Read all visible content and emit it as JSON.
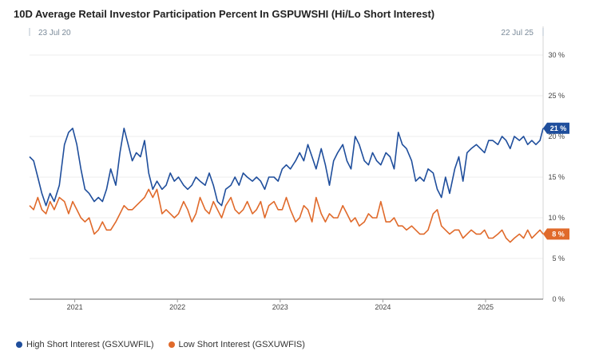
{
  "chart_data": {
    "type": "line",
    "title": "10D Average Retail Investor Participation Percent In GSPUWSHI (Hi/Lo Short Interest)",
    "range_start_label": "23 Jul 20",
    "range_end_label": "22 Jul 25",
    "x_start": 2020.56,
    "x_end": 2025.56,
    "xticks": [
      2021,
      2022,
      2023,
      2024,
      2025
    ],
    "xtick_labels": [
      "2021",
      "2022",
      "2023",
      "2024",
      "2025"
    ],
    "ylim": [
      0,
      30
    ],
    "yticks": [
      0,
      5,
      10,
      15,
      20,
      25,
      30
    ],
    "ytick_labels": [
      "0 %",
      "5 %",
      "10 %",
      "15 %",
      "20 %",
      "25 %",
      "30 %"
    ],
    "series": [
      {
        "name": "High Short Interest (GSXUWFIL)",
        "color": "#1f4e9c",
        "last_label": "21 %",
        "x": [
          2020.56,
          2020.6,
          2020.64,
          2020.68,
          2020.72,
          2020.76,
          2020.8,
          2020.85,
          2020.9,
          2020.94,
          2020.98,
          2021.02,
          2021.06,
          2021.1,
          2021.14,
          2021.19,
          2021.23,
          2021.27,
          2021.31,
          2021.35,
          2021.4,
          2021.44,
          2021.48,
          2021.52,
          2021.56,
          2021.6,
          2021.64,
          2021.68,
          2021.72,
          2021.76,
          2021.8,
          2021.85,
          2021.89,
          2021.93,
          2021.97,
          2022.01,
          2022.06,
          2022.1,
          2022.14,
          2022.18,
          2022.22,
          2022.27,
          2022.31,
          2022.35,
          2022.39,
          2022.43,
          2022.47,
          2022.52,
          2022.56,
          2022.6,
          2022.64,
          2022.68,
          2022.73,
          2022.77,
          2022.81,
          2022.85,
          2022.89,
          2022.94,
          2022.98,
          2023.02,
          2023.06,
          2023.1,
          2023.15,
          2023.19,
          2023.23,
          2023.27,
          2023.31,
          2023.35,
          2023.4,
          2023.44,
          2023.48,
          2023.52,
          2023.56,
          2023.61,
          2023.65,
          2023.69,
          2023.73,
          2023.77,
          2023.82,
          2023.86,
          2023.9,
          2023.94,
          2023.98,
          2024.03,
          2024.07,
          2024.11,
          2024.15,
          2024.19,
          2024.23,
          2024.28,
          2024.32,
          2024.36,
          2024.4,
          2024.44,
          2024.49,
          2024.53,
          2024.57,
          2024.61,
          2024.65,
          2024.7,
          2024.74,
          2024.78,
          2024.82,
          2024.86,
          2024.91,
          2024.95,
          2024.99,
          2025.03,
          2025.07,
          2025.12,
          2025.16,
          2025.2,
          2025.24,
          2025.28,
          2025.33,
          2025.37,
          2025.41,
          2025.45,
          2025.49,
          2025.53,
          2025.56
        ],
        "y": [
          17.5,
          17,
          15,
          13,
          11.5,
          13,
          12,
          14,
          19,
          20.5,
          21,
          19,
          16,
          13.5,
          13,
          12,
          12.5,
          12,
          13.5,
          16,
          14,
          18,
          21,
          19,
          17,
          18,
          17.5,
          19.5,
          15.5,
          13.5,
          14.5,
          13.5,
          14,
          15.5,
          14.5,
          15,
          14,
          13.5,
          14,
          15,
          14.5,
          14,
          15.5,
          14,
          12,
          11.5,
          13.5,
          14,
          15,
          14,
          15.5,
          15,
          14.5,
          15,
          14.5,
          13.5,
          15,
          15,
          14.5,
          16,
          16.5,
          16,
          17,
          18,
          17,
          19,
          17.5,
          16,
          18.5,
          16.5,
          14,
          17,
          18,
          19,
          17,
          16,
          20,
          19,
          17,
          16.5,
          18,
          17,
          16.5,
          18,
          17.5,
          16,
          20.5,
          19,
          18.5,
          17,
          14.5,
          15,
          14.5,
          16,
          15.5,
          13.5,
          12.5,
          15,
          13,
          16,
          17.5,
          14.5,
          18,
          18.5,
          19,
          18.5,
          18,
          19.5,
          19.5,
          19,
          20,
          19.5,
          18.5,
          20,
          19.5,
          20,
          19,
          19.5,
          19,
          19.5,
          21
        ]
      },
      {
        "name": "Low Short Interest (GSXUWFIS)",
        "color": "#e06a2b",
        "last_label": "8 %",
        "x": [
          2020.56,
          2020.6,
          2020.64,
          2020.68,
          2020.72,
          2020.76,
          2020.8,
          2020.85,
          2020.9,
          2020.94,
          2020.98,
          2021.02,
          2021.06,
          2021.1,
          2021.14,
          2021.19,
          2021.23,
          2021.27,
          2021.31,
          2021.35,
          2021.4,
          2021.44,
          2021.48,
          2021.52,
          2021.56,
          2021.6,
          2021.64,
          2021.68,
          2021.72,
          2021.76,
          2021.8,
          2021.85,
          2021.89,
          2021.93,
          2021.97,
          2022.01,
          2022.06,
          2022.1,
          2022.14,
          2022.18,
          2022.22,
          2022.27,
          2022.31,
          2022.35,
          2022.39,
          2022.43,
          2022.47,
          2022.52,
          2022.56,
          2022.6,
          2022.64,
          2022.68,
          2022.73,
          2022.77,
          2022.81,
          2022.85,
          2022.89,
          2022.94,
          2022.98,
          2023.02,
          2023.06,
          2023.1,
          2023.15,
          2023.19,
          2023.23,
          2023.27,
          2023.31,
          2023.35,
          2023.4,
          2023.44,
          2023.48,
          2023.52,
          2023.56,
          2023.61,
          2023.65,
          2023.69,
          2023.73,
          2023.77,
          2023.82,
          2023.86,
          2023.9,
          2023.94,
          2023.98,
          2024.03,
          2024.07,
          2024.11,
          2024.15,
          2024.19,
          2024.23,
          2024.28,
          2024.32,
          2024.36,
          2024.4,
          2024.44,
          2024.49,
          2024.53,
          2024.57,
          2024.61,
          2024.65,
          2024.7,
          2024.74,
          2024.78,
          2024.82,
          2024.86,
          2024.91,
          2024.95,
          2024.99,
          2025.03,
          2025.07,
          2025.12,
          2025.16,
          2025.2,
          2025.24,
          2025.28,
          2025.33,
          2025.37,
          2025.41,
          2025.45,
          2025.49,
          2025.53,
          2025.56
        ],
        "y": [
          11.5,
          11,
          12.5,
          11,
          10.5,
          12,
          11,
          12.5,
          12,
          10.5,
          12,
          11,
          10,
          9.5,
          10,
          8,
          8.5,
          9.5,
          8.5,
          8.5,
          9.5,
          10.5,
          11.5,
          11,
          11,
          11.5,
          12,
          12.5,
          13.5,
          12.5,
          13.5,
          10.5,
          11,
          10.5,
          10,
          10.5,
          12,
          11,
          9.5,
          10.5,
          12.5,
          11,
          10.5,
          12,
          11,
          10,
          11.5,
          12.5,
          11,
          10.5,
          11,
          12,
          10.5,
          11,
          12,
          10,
          11.5,
          12,
          11,
          11,
          12.5,
          11,
          9.5,
          10,
          11.5,
          11,
          9.5,
          12.5,
          10.5,
          9.5,
          10.5,
          10,
          10,
          11.5,
          10.5,
          9.5,
          10,
          9,
          9.5,
          10.5,
          10,
          10,
          12,
          9.5,
          9.5,
          10,
          9,
          9,
          8.5,
          9,
          8.5,
          8,
          8,
          8.5,
          10.5,
          11,
          9,
          8.5,
          8,
          8.5,
          8.5,
          7.5,
          8,
          8.5,
          8,
          8,
          8.5,
          7.5,
          7.5,
          8,
          8.5,
          7.5,
          7,
          7.5,
          8,
          7.5,
          8.5,
          7.5,
          8,
          8.5,
          8
        ]
      }
    ]
  }
}
